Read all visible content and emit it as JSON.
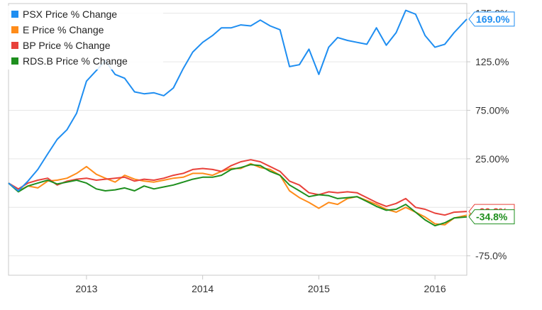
{
  "chart_data": {
    "type": "line",
    "title": "",
    "xlabel": "",
    "ylabel": "",
    "x_ticks": [
      "2013",
      "2014",
      "2015",
      "2016"
    ],
    "y_ticks": [
      "175.0%",
      "125.0%",
      "75.00%",
      "25.00%",
      "-25.0%",
      "-75.0%"
    ],
    "ylim": [
      -95,
      185
    ],
    "grid": true,
    "legend_position": "top-left",
    "series": [
      {
        "name": "PSX Price % Change",
        "color": "#1f8ef1",
        "end_label": "169.0%",
        "end_value": 169.0,
        "points": [
          [
            "2012-05-01",
            0
          ],
          [
            "2012-06-01",
            -8
          ],
          [
            "2012-07-01",
            2
          ],
          [
            "2012-08-01",
            14
          ],
          [
            "2012-09-01",
            30
          ],
          [
            "2012-10-01",
            45
          ],
          [
            "2012-11-01",
            55
          ],
          [
            "2012-12-01",
            72
          ],
          [
            "2013-01-01",
            105
          ],
          [
            "2013-02-01",
            116
          ],
          [
            "2013-03-01",
            126
          ],
          [
            "2013-04-01",
            112
          ],
          [
            "2013-05-01",
            108
          ],
          [
            "2013-06-01",
            94
          ],
          [
            "2013-07-01",
            92
          ],
          [
            "2013-08-01",
            93
          ],
          [
            "2013-09-01",
            90
          ],
          [
            "2013-10-01",
            98
          ],
          [
            "2013-11-01",
            118
          ],
          [
            "2013-12-01",
            135
          ],
          [
            "2014-01-01",
            145
          ],
          [
            "2014-02-01",
            152
          ],
          [
            "2014-03-01",
            160
          ],
          [
            "2014-04-01",
            160
          ],
          [
            "2014-05-01",
            163
          ],
          [
            "2014-06-01",
            162
          ],
          [
            "2014-07-01",
            168
          ],
          [
            "2014-08-01",
            162
          ],
          [
            "2014-09-01",
            158
          ],
          [
            "2014-10-01",
            120
          ],
          [
            "2014-11-01",
            122
          ],
          [
            "2014-12-01",
            138
          ],
          [
            "2015-01-01",
            112
          ],
          [
            "2015-02-01",
            140
          ],
          [
            "2015-03-01",
            150
          ],
          [
            "2015-04-01",
            147
          ],
          [
            "2015-05-01",
            145
          ],
          [
            "2015-06-01",
            143
          ],
          [
            "2015-07-01",
            160
          ],
          [
            "2015-08-01",
            142
          ],
          [
            "2015-09-01",
            155
          ],
          [
            "2015-10-01",
            178
          ],
          [
            "2015-11-01",
            174
          ],
          [
            "2015-12-01",
            152
          ],
          [
            "2016-01-01",
            140
          ],
          [
            "2016-02-01",
            143
          ],
          [
            "2016-03-01",
            155
          ],
          [
            "2016-04-10",
            169
          ]
        ]
      },
      {
        "name": "E Price % Change",
        "color": "#ff8c1a",
        "end_label": "-33.1%",
        "end_value": -33.1,
        "points": [
          [
            "2012-05-01",
            0
          ],
          [
            "2012-06-01",
            -8
          ],
          [
            "2012-07-01",
            -3
          ],
          [
            "2012-08-01",
            -5
          ],
          [
            "2012-09-01",
            2
          ],
          [
            "2012-10-01",
            3
          ],
          [
            "2012-11-01",
            5
          ],
          [
            "2012-12-01",
            10
          ],
          [
            "2013-01-01",
            17
          ],
          [
            "2013-02-01",
            9
          ],
          [
            "2013-03-01",
            5
          ],
          [
            "2013-04-01",
            1
          ],
          [
            "2013-05-01",
            8
          ],
          [
            "2013-06-01",
            4
          ],
          [
            "2013-07-01",
            2
          ],
          [
            "2013-08-01",
            1
          ],
          [
            "2013-09-01",
            3
          ],
          [
            "2013-10-01",
            5
          ],
          [
            "2013-11-01",
            6
          ],
          [
            "2013-12-01",
            10
          ],
          [
            "2014-01-01",
            10
          ],
          [
            "2014-02-01",
            8
          ],
          [
            "2014-03-01",
            12
          ],
          [
            "2014-04-01",
            15
          ],
          [
            "2014-05-01",
            15
          ],
          [
            "2014-06-01",
            20
          ],
          [
            "2014-07-01",
            16
          ],
          [
            "2014-08-01",
            14
          ],
          [
            "2014-09-01",
            8
          ],
          [
            "2014-10-01",
            -8
          ],
          [
            "2014-11-01",
            -15
          ],
          [
            "2014-12-01",
            -20
          ],
          [
            "2015-01-01",
            -26
          ],
          [
            "2015-02-01",
            -20
          ],
          [
            "2015-03-01",
            -22
          ],
          [
            "2015-04-01",
            -16
          ],
          [
            "2015-05-01",
            -14
          ],
          [
            "2015-06-01",
            -18
          ],
          [
            "2015-07-01",
            -22
          ],
          [
            "2015-08-01",
            -27
          ],
          [
            "2015-09-01",
            -30
          ],
          [
            "2015-10-01",
            -25
          ],
          [
            "2015-11-01",
            -30
          ],
          [
            "2015-12-01",
            -35
          ],
          [
            "2016-01-01",
            -42
          ],
          [
            "2016-02-01",
            -43
          ],
          [
            "2016-03-01",
            -36
          ],
          [
            "2016-04-10",
            -33.1
          ]
        ]
      },
      {
        "name": "BP Price % Change",
        "color": "#e8413a",
        "end_label": "-29.3%",
        "end_value": -29.3,
        "points": [
          [
            "2012-05-01",
            0
          ],
          [
            "2012-06-01",
            -6
          ],
          [
            "2012-07-01",
            0
          ],
          [
            "2012-08-01",
            3
          ],
          [
            "2012-09-01",
            5
          ],
          [
            "2012-10-01",
            -2
          ],
          [
            "2012-11-01",
            2
          ],
          [
            "2012-12-01",
            4
          ],
          [
            "2013-01-01",
            5
          ],
          [
            "2013-02-01",
            3
          ],
          [
            "2013-03-01",
            4
          ],
          [
            "2013-04-01",
            5
          ],
          [
            "2013-05-01",
            6
          ],
          [
            "2013-06-01",
            2
          ],
          [
            "2013-07-01",
            4
          ],
          [
            "2013-08-01",
            3
          ],
          [
            "2013-09-01",
            5
          ],
          [
            "2013-10-01",
            8
          ],
          [
            "2013-11-01",
            10
          ],
          [
            "2013-12-01",
            14
          ],
          [
            "2014-01-01",
            15
          ],
          [
            "2014-02-01",
            14
          ],
          [
            "2014-03-01",
            12
          ],
          [
            "2014-04-01",
            18
          ],
          [
            "2014-05-01",
            22
          ],
          [
            "2014-06-01",
            24
          ],
          [
            "2014-07-01",
            22
          ],
          [
            "2014-08-01",
            17
          ],
          [
            "2014-09-01",
            12
          ],
          [
            "2014-10-01",
            2
          ],
          [
            "2014-11-01",
            -2
          ],
          [
            "2014-12-01",
            -10
          ],
          [
            "2015-01-01",
            -12
          ],
          [
            "2015-02-01",
            -9
          ],
          [
            "2015-03-01",
            -10
          ],
          [
            "2015-04-01",
            -9
          ],
          [
            "2015-05-01",
            -10
          ],
          [
            "2015-06-01",
            -15
          ],
          [
            "2015-07-01",
            -20
          ],
          [
            "2015-08-01",
            -24
          ],
          [
            "2015-09-01",
            -21
          ],
          [
            "2015-10-01",
            -16
          ],
          [
            "2015-11-01",
            -25
          ],
          [
            "2015-12-01",
            -27
          ],
          [
            "2016-01-01",
            -31
          ],
          [
            "2016-02-01",
            -33
          ],
          [
            "2016-03-01",
            -30
          ],
          [
            "2016-04-10",
            -29.3
          ]
        ]
      },
      {
        "name": "RDS.B Price % Change",
        "color": "#1e8f1e",
        "end_label": "-34.8%",
        "end_value": -34.8,
        "points": [
          [
            "2012-05-01",
            0
          ],
          [
            "2012-06-01",
            -9
          ],
          [
            "2012-07-01",
            -3
          ],
          [
            "2012-08-01",
            0
          ],
          [
            "2012-09-01",
            3
          ],
          [
            "2012-10-01",
            -1
          ],
          [
            "2012-11-01",
            1
          ],
          [
            "2012-12-01",
            3
          ],
          [
            "2013-01-01",
            0
          ],
          [
            "2013-02-01",
            -6
          ],
          [
            "2013-03-01",
            -8
          ],
          [
            "2013-04-01",
            -7
          ],
          [
            "2013-05-01",
            -5
          ],
          [
            "2013-06-01",
            -8
          ],
          [
            "2013-07-01",
            -3
          ],
          [
            "2013-08-01",
            -6
          ],
          [
            "2013-09-01",
            -4
          ],
          [
            "2013-10-01",
            -2
          ],
          [
            "2013-11-01",
            1
          ],
          [
            "2013-12-01",
            4
          ],
          [
            "2014-01-01",
            6
          ],
          [
            "2014-02-01",
            6
          ],
          [
            "2014-03-01",
            8
          ],
          [
            "2014-04-01",
            14
          ],
          [
            "2014-05-01",
            16
          ],
          [
            "2014-06-01",
            19
          ],
          [
            "2014-07-01",
            18
          ],
          [
            "2014-08-01",
            12
          ],
          [
            "2014-09-01",
            8
          ],
          [
            "2014-10-01",
            -2
          ],
          [
            "2014-11-01",
            -8
          ],
          [
            "2014-12-01",
            -14
          ],
          [
            "2015-01-01",
            -12
          ],
          [
            "2015-02-01",
            -13
          ],
          [
            "2015-03-01",
            -16
          ],
          [
            "2015-04-01",
            -15
          ],
          [
            "2015-05-01",
            -14
          ],
          [
            "2015-06-01",
            -19
          ],
          [
            "2015-07-01",
            -24
          ],
          [
            "2015-08-01",
            -28
          ],
          [
            "2015-09-01",
            -27
          ],
          [
            "2015-10-01",
            -22
          ],
          [
            "2015-11-01",
            -30
          ],
          [
            "2015-12-01",
            -38
          ],
          [
            "2016-01-01",
            -44
          ],
          [
            "2016-02-01",
            -41
          ],
          [
            "2016-03-01",
            -36
          ],
          [
            "2016-04-10",
            -34.8
          ]
        ]
      }
    ],
    "x_range": [
      "2012-05-01",
      "2016-04-10"
    ]
  }
}
